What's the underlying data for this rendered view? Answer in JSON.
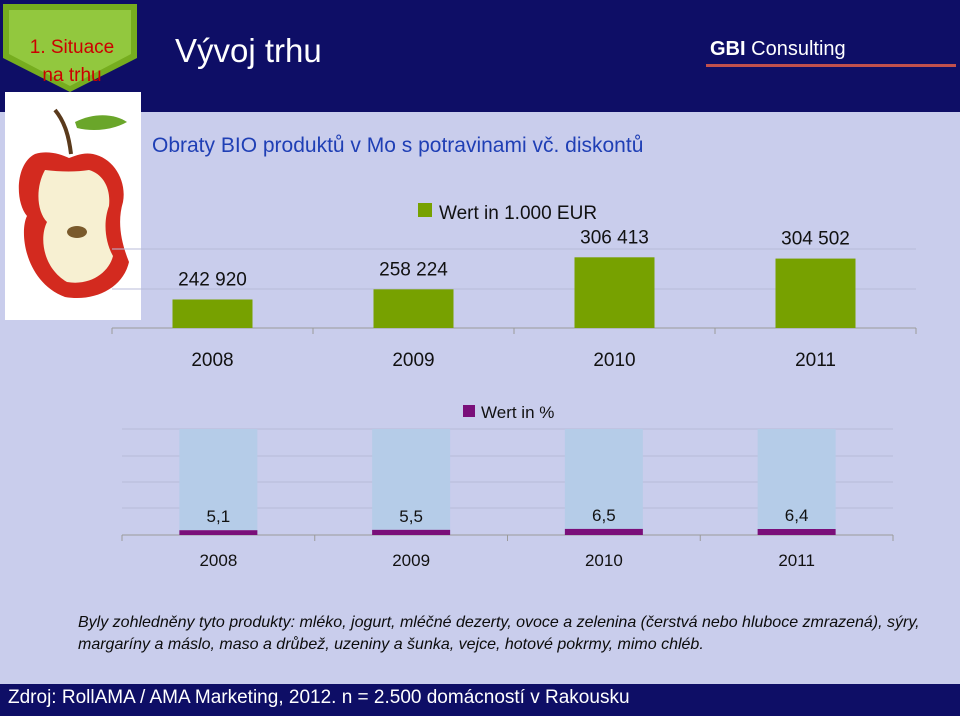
{
  "header": {
    "title": "Vývoj trhu",
    "brand_bold": "GBI",
    "brand_rest": "Consulting",
    "section_line1": "1. Situace",
    "section_line2": "na trhu"
  },
  "subtitle": "Obraty BIO produktů v Mo s potravinami vč. diskontů",
  "chart_data": [
    {
      "type": "bar",
      "categories": [
        "2008",
        "2009",
        "2010",
        "2011"
      ],
      "series": [
        {
          "name": "Wert in 1.000 EUR",
          "values": [
            242920,
            258224,
            306413,
            304502
          ]
        }
      ],
      "data_labels": [
        "242 920",
        "258 224",
        "306 413",
        "304 502"
      ],
      "legend": "top-center",
      "color": "#77a100",
      "grid": true
    },
    {
      "type": "bar",
      "stacked_percent": true,
      "categories": [
        "2008",
        "2009",
        "2010",
        "2011"
      ],
      "series": [
        {
          "name": "Wert in %",
          "values": [
            5.1,
            5.5,
            6.5,
            6.4
          ]
        }
      ],
      "data_labels": [
        "5,1",
        "5,5",
        "6,5",
        "6,4"
      ],
      "legend": "top-center",
      "color": "#7a0f7a",
      "remainder_color": "#b5cce8",
      "grid": true
    }
  ],
  "footnote": "Byly zohledněny tyto produkty: mléko, jogurt, mléčné dezerty, ovoce a zelenina (čerstvá nebo hluboce zmrazená), sýry, margaríny a máslo, maso a drůbež, uzeniny a šunka, vejce, hotové pokrmy, mimo chléb.",
  "source": "Zdroj: RollAMA / AMA Marketing, 2012. n = 2.500 domácností v Rakousku"
}
